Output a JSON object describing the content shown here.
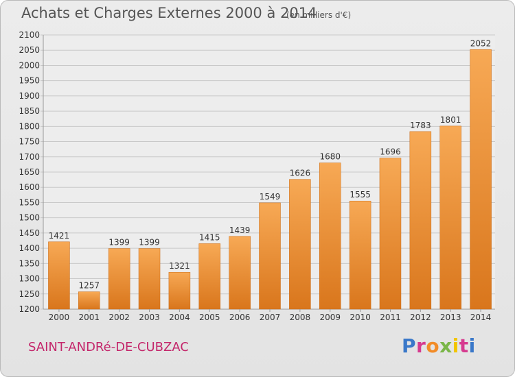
{
  "header": {
    "title": "Achats et Charges Externes 2000 à 2014",
    "unit": "(en milliers d'€)"
  },
  "footer": {
    "commune": "SAINT-ANDRé-DE-CUBZAC",
    "logo": "Proxiti",
    "logo_colors": [
      "#3a78c9",
      "#d63b8f",
      "#f28c28",
      "#7ab648",
      "#f2c500",
      "#d63b8f",
      "#3a78c9"
    ]
  },
  "colors": {
    "bar_light": "#f7a955",
    "bar_dark": "#d9761c",
    "bar_edge": "#c96a14",
    "grid": "#c9c9c9",
    "plot_bg": "#ededed"
  },
  "chart_data": {
    "type": "bar",
    "title": "Achats et Charges Externes 2000 à 2014",
    "subtitle": "(en milliers d'€)",
    "categories": [
      "2000",
      "2001",
      "2002",
      "2003",
      "2004",
      "2005",
      "2006",
      "2007",
      "2008",
      "2009",
      "2010",
      "2011",
      "2012",
      "2013",
      "2014"
    ],
    "values": [
      1421,
      1257,
      1399,
      1399,
      1321,
      1415,
      1439,
      1549,
      1626,
      1680,
      1555,
      1696,
      1783,
      1801,
      2052
    ],
    "ylim": [
      1200,
      2100
    ],
    "ytick_step": 50,
    "grid": true,
    "xlabel": "",
    "ylabel": ""
  }
}
